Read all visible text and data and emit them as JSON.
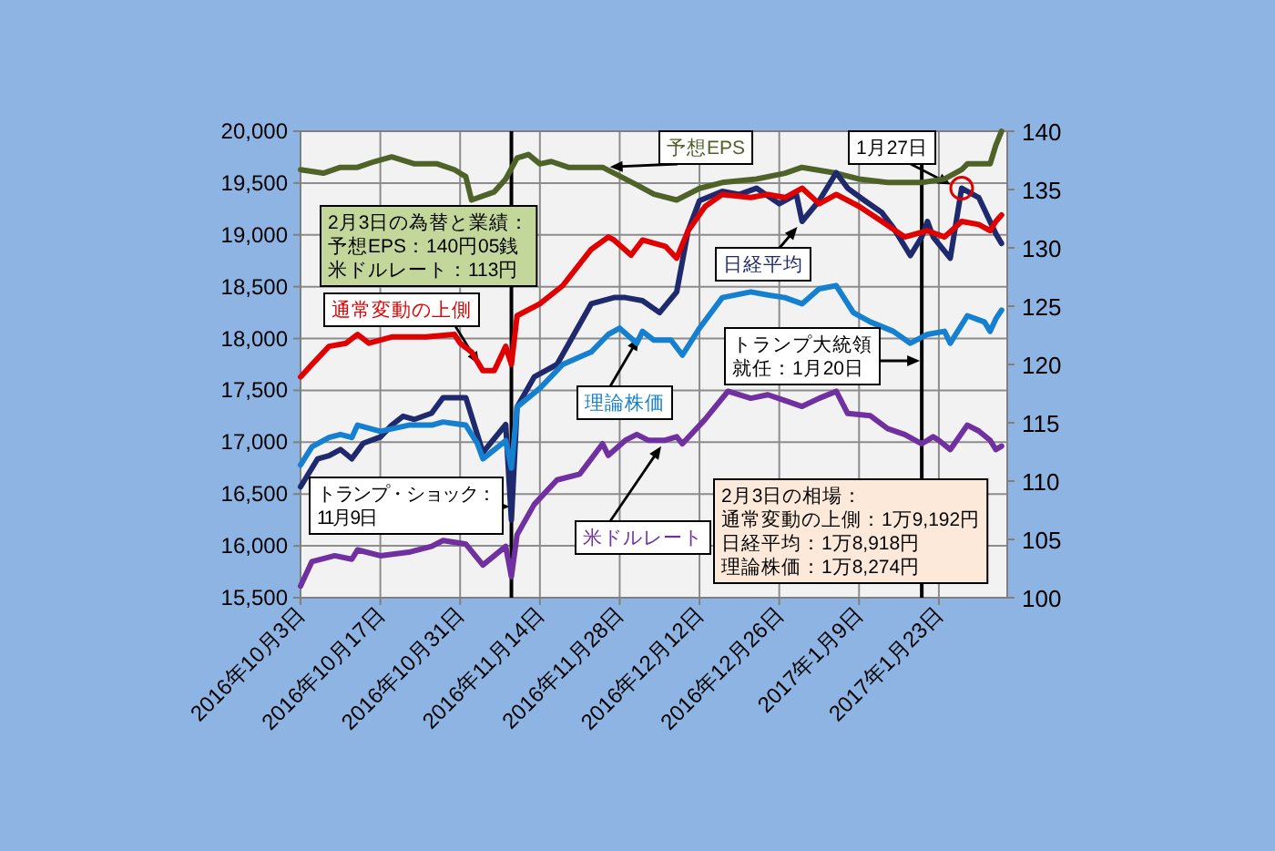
{
  "chart_data": {
    "type": "line",
    "xlim": [
      "2016-10-03",
      "2017-02-04"
    ],
    "xticks": [
      {
        "value": "2016-10-03",
        "label": "2016年10月3日"
      },
      {
        "value": "2016-10-17",
        "label": "2016年10月17日"
      },
      {
        "value": "2016-10-31",
        "label": "2016年10月31日"
      },
      {
        "value": "2016-11-14",
        "label": "2016年11月14日"
      },
      {
        "value": "2016-11-28",
        "label": "2016年11月28日"
      },
      {
        "value": "2016-12-12",
        "label": "2016年12月12日"
      },
      {
        "value": "2016-12-26",
        "label": "2016年12月26日"
      },
      {
        "value": "2017-01-09",
        "label": "2017年1月9日"
      },
      {
        "value": "2017-01-23",
        "label": "2017年1月23日"
      }
    ],
    "ylim": [
      15500,
      20000
    ],
    "yticks": [
      {
        "value": 15500,
        "label": "15,500"
      },
      {
        "value": 16000,
        "label": "16,000"
      },
      {
        "value": 16500,
        "label": "16,500"
      },
      {
        "value": 17000,
        "label": "17,000"
      },
      {
        "value": 17500,
        "label": "17,500"
      },
      {
        "value": 18000,
        "label": "18,000"
      },
      {
        "value": 18500,
        "label": "18,500"
      },
      {
        "value": 19000,
        "label": "19,000"
      },
      {
        "value": 19500,
        "label": "19,500"
      },
      {
        "value": 20000,
        "label": "20,000"
      }
    ],
    "y2lim": [
      100,
      140
    ],
    "y2ticks": [
      100,
      105,
      110,
      115,
      120,
      125,
      130,
      135,
      140
    ],
    "grid": true,
    "series": [
      {
        "name": "予想EPS",
        "color": "#4f6228",
        "axis": "y2",
        "x": [
          "2016-10-03",
          "2016-10-07",
          "2016-10-10",
          "2016-10-13",
          "2016-10-16",
          "2016-10-19",
          "2016-10-23",
          "2016-10-27",
          "2016-10-30",
          "2016-11-01",
          "2016-11-02",
          "2016-11-06",
          "2016-11-08",
          "2016-11-10",
          "2016-11-12",
          "2016-11-14",
          "2016-11-16",
          "2016-11-19",
          "2016-11-25",
          "2016-12-01",
          "2016-12-04",
          "2016-12-08",
          "2016-12-12",
          "2016-12-16",
          "2016-12-22",
          "2016-12-27",
          "2016-12-30",
          "2017-01-05",
          "2017-01-09",
          "2017-01-14",
          "2017-01-20",
          "2017-01-24",
          "2017-01-27",
          "2017-01-28",
          "2017-02-01",
          "2017-02-02",
          "2017-02-03"
        ],
        "values": [
          136.7,
          136.4,
          136.9,
          136.9,
          137.4,
          137.8,
          137.2,
          137.2,
          136.7,
          136.1,
          134.1,
          134.8,
          135.9,
          137.7,
          138.0,
          137.2,
          137.4,
          136.9,
          136.9,
          135.4,
          134.6,
          134.1,
          135.1,
          135.6,
          135.9,
          136.4,
          136.9,
          136.4,
          135.9,
          135.6,
          135.6,
          135.9,
          136.7,
          137.2,
          137.2,
          138.8,
          140.0
        ]
      },
      {
        "name": "日経平均",
        "color": "#1f2a6e",
        "x": [
          "2016-10-03",
          "2016-10-06",
          "2016-10-08",
          "2016-10-10",
          "2016-10-12",
          "2016-10-14",
          "2016-10-17",
          "2016-10-19",
          "2016-10-21",
          "2016-10-23",
          "2016-10-26",
          "2016-10-28",
          "2016-11-01",
          "2016-11-04",
          "2016-11-08",
          "2016-11-09",
          "2016-11-10",
          "2016-11-13",
          "2016-11-17",
          "2016-11-23",
          "2016-11-27",
          "2016-11-29",
          "2016-12-02",
          "2016-12-05",
          "2016-12-08",
          "2016-12-10",
          "2016-12-12",
          "2016-12-16",
          "2016-12-19",
          "2016-12-22",
          "2016-12-26",
          "2016-12-29",
          "2016-12-30",
          "2017-01-02",
          "2017-01-05",
          "2017-01-07",
          "2017-01-10",
          "2017-01-13",
          "2017-01-15",
          "2017-01-18",
          "2017-01-20",
          "2017-01-21",
          "2017-01-22",
          "2017-01-25",
          "2017-01-27",
          "2017-01-30",
          "2017-02-02",
          "2017-02-03"
        ],
        "values": [
          16570,
          16840,
          16870,
          16930,
          16840,
          16990,
          17050,
          17165,
          17250,
          17220,
          17280,
          17430,
          17430,
          16900,
          17170,
          16250,
          17340,
          17630,
          17750,
          18335,
          18395,
          18395,
          18365,
          18250,
          18450,
          19040,
          19330,
          19420,
          19390,
          19450,
          19300,
          19390,
          19130,
          19330,
          19600,
          19450,
          19330,
          19215,
          19070,
          18800,
          18980,
          19130,
          18980,
          18775,
          19450,
          19360,
          19010,
          18918
        ]
      },
      {
        "name": "通常変動の上側",
        "color": "#e00000",
        "x": [
          "2016-10-03",
          "2016-10-05",
          "2016-10-08",
          "2016-10-11",
          "2016-10-13",
          "2016-10-15",
          "2016-10-19",
          "2016-10-25",
          "2016-10-30",
          "2016-10-31",
          "2016-11-02",
          "2016-11-04",
          "2016-11-06",
          "2016-11-08",
          "2016-11-09",
          "2016-11-10",
          "2016-11-14",
          "2016-11-18",
          "2016-11-23",
          "2016-11-26",
          "2016-11-27",
          "2016-11-30",
          "2016-12-02",
          "2016-12-06",
          "2016-12-08",
          "2016-12-10",
          "2016-12-13",
          "2016-12-16",
          "2016-12-21",
          "2016-12-24",
          "2016-12-27",
          "2016-12-30",
          "2017-01-02",
          "2017-01-05",
          "2017-01-09",
          "2017-01-13",
          "2017-01-17",
          "2017-01-21",
          "2017-01-24",
          "2017-01-27",
          "2017-01-30",
          "2017-02-01",
          "2017-02-02",
          "2017-02-03"
        ],
        "values": [
          17630,
          17750,
          17925,
          17955,
          18040,
          17955,
          18015,
          18015,
          18040,
          17955,
          17870,
          17690,
          17690,
          17925,
          17750,
          18220,
          18335,
          18510,
          18860,
          18980,
          18950,
          18805,
          18950,
          18890,
          18775,
          19040,
          19275,
          19390,
          19360,
          19390,
          19360,
          19450,
          19300,
          19390,
          19275,
          19130,
          18980,
          19040,
          18980,
          19130,
          19100,
          19040,
          19130,
          19192
        ]
      },
      {
        "name": "理論株価",
        "color": "#1580d0",
        "x": [
          "2016-10-03",
          "2016-10-05",
          "2016-10-08",
          "2016-10-10",
          "2016-10-12",
          "2016-10-13",
          "2016-10-17",
          "2016-10-22",
          "2016-10-26",
          "2016-10-28",
          "2016-11-01",
          "2016-11-03",
          "2016-11-04",
          "2016-11-08",
          "2016-11-09",
          "2016-11-10",
          "2016-11-14",
          "2016-11-18",
          "2016-11-23",
          "2016-11-26",
          "2016-11-28",
          "2016-12-01",
          "2016-12-02",
          "2016-12-04",
          "2016-12-07",
          "2016-12-09",
          "2016-12-12",
          "2016-12-16",
          "2016-12-21",
          "2016-12-24",
          "2016-12-27",
          "2016-12-30",
          "2017-01-02",
          "2017-01-05",
          "2017-01-08",
          "2017-01-11",
          "2017-01-15",
          "2017-01-18",
          "2017-01-21",
          "2017-01-24",
          "2017-01-25",
          "2017-01-28",
          "2017-01-31",
          "2017-02-01",
          "2017-02-02",
          "2017-02-03"
        ],
        "values": [
          16780,
          16955,
          17045,
          17075,
          17045,
          17165,
          17105,
          17165,
          17165,
          17195,
          17165,
          16990,
          16840,
          17015,
          16750,
          17340,
          17520,
          17750,
          17870,
          18040,
          18100,
          17955,
          18070,
          17985,
          17985,
          17840,
          18100,
          18395,
          18450,
          18420,
          18395,
          18335,
          18480,
          18510,
          18250,
          18160,
          18070,
          17955,
          18040,
          18070,
          17955,
          18220,
          18160,
          18070,
          18190,
          18274
        ]
      },
      {
        "name": "米ドルレート",
        "color": "#7030a0",
        "axis": "y2",
        "x": [
          "2016-10-03",
          "2016-10-05",
          "2016-10-09",
          "2016-10-12",
          "2016-10-13",
          "2016-10-17",
          "2016-10-22",
          "2016-10-26",
          "2016-10-28",
          "2016-11-01",
          "2016-11-04",
          "2016-11-08",
          "2016-11-09",
          "2016-11-10",
          "2016-11-13",
          "2016-11-17",
          "2016-11-21",
          "2016-11-25",
          "2016-11-26",
          "2016-11-29",
          "2016-12-01",
          "2016-12-03",
          "2016-12-06",
          "2016-12-08",
          "2016-12-09",
          "2016-12-13",
          "2016-12-17",
          "2016-12-21",
          "2016-12-24",
          "2016-12-27",
          "2016-12-30",
          "2017-01-02",
          "2017-01-05",
          "2017-01-07",
          "2017-01-11",
          "2017-01-14",
          "2017-01-17",
          "2017-01-20",
          "2017-01-22",
          "2017-01-23",
          "2017-01-25",
          "2017-01-28",
          "2017-01-30",
          "2017-02-01",
          "2017-02-02",
          "2017-02-03"
        ],
        "values": [
          101.0,
          103.1,
          103.6,
          103.3,
          104.1,
          103.6,
          103.9,
          104.4,
          104.9,
          104.6,
          102.8,
          104.4,
          101.8,
          105.4,
          108.0,
          110.1,
          110.6,
          113.2,
          112.2,
          113.5,
          114.0,
          113.5,
          113.5,
          113.8,
          113.2,
          115.3,
          117.7,
          117.1,
          117.4,
          116.9,
          116.4,
          117.1,
          117.7,
          115.8,
          115.6,
          114.5,
          114.0,
          113.2,
          113.8,
          113.5,
          112.7,
          114.8,
          114.3,
          113.5,
          112.7,
          113.0
        ]
      }
    ],
    "ref_lines": [
      {
        "axis": "x",
        "value": "2016-11-09",
        "label": "トランプ・ショック：11月9日",
        "color": "#000000"
      },
      {
        "axis": "x",
        "value": "2017-01-20",
        "label": "トランプ大統領就任：1月20日",
        "color": "#000000"
      }
    ],
    "annotations": [
      "2月3日の為替と業績：予想EPS：140円05銭米ドルレート：113円",
      {
        "text": "1月27日",
        "x": "2017-01-27",
        "y": 19450
      },
      "2月3日の相場：通常変動の上側：1万9,192円日経平均：1万8,918円理論株価：1万8,274円"
    ]
  }
}
